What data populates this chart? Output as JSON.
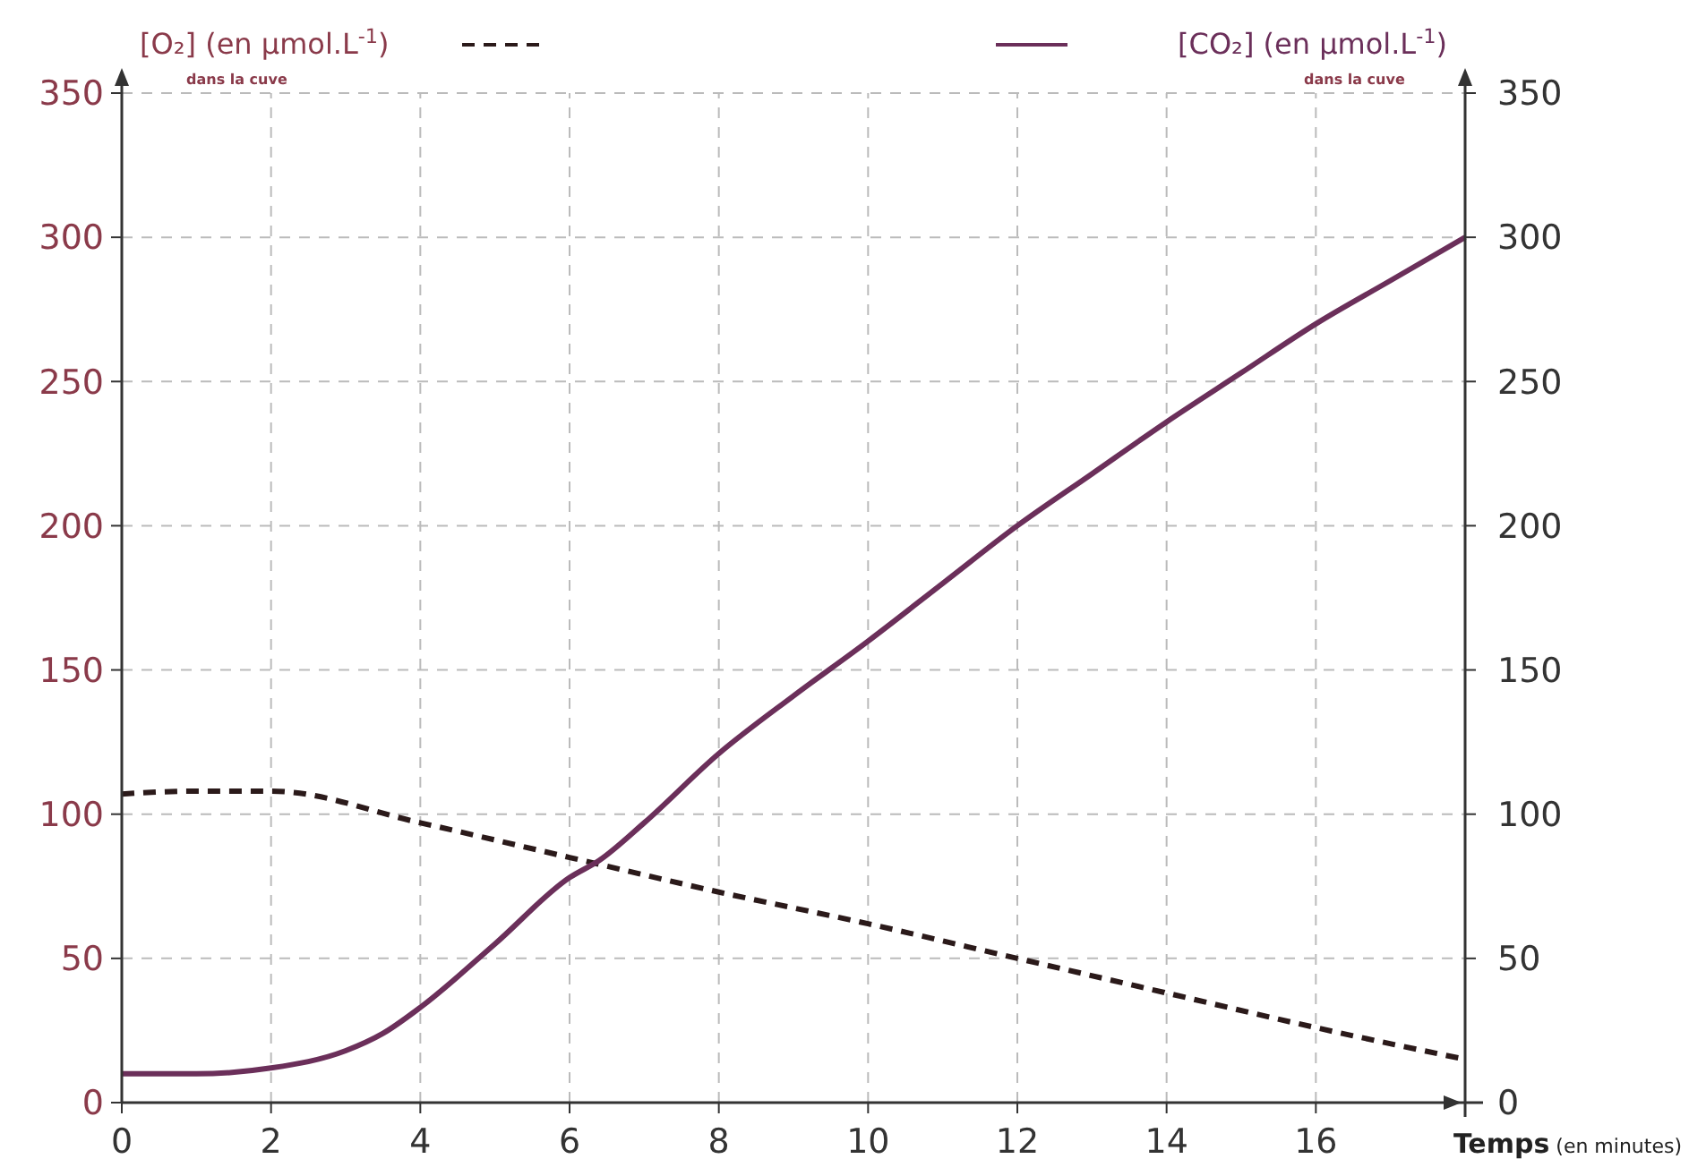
{
  "chart_data": {
    "type": "line",
    "xlabel": "Temps (en minutes)",
    "ylabel": "[O₂] (en µmol.L$^{-1}$)",
    "y2label": "[CO₂] (en µmol.L$^{-1}$)",
    "annotations": [
      "dans la cuve",
      "dans la cuve"
    ],
    "xlim": [
      0,
      18
    ],
    "xticks": [
      0,
      2,
      4,
      6,
      8,
      10,
      12,
      14,
      16
    ],
    "ylim": [
      0,
      350
    ],
    "yticks": [
      0,
      50,
      100,
      150,
      200,
      250,
      300,
      350
    ],
    "y2lim": [
      0,
      350
    ],
    "y2ticks": [
      0,
      50,
      100,
      150,
      200,
      250,
      300,
      350
    ],
    "grid": true,
    "series": [
      {
        "color": "#2b1a1a",
        "line_style": "dashed",
        "x": [
          0,
          1,
          2,
          4,
          6,
          8,
          10,
          12,
          14,
          16,
          18
        ],
        "values": [
          107,
          108,
          108,
          97,
          85,
          73,
          62,
          50,
          38,
          26,
          15
        ]
      },
      {
        "color": "#6b2f5a",
        "line_style": "solid",
        "axis": "y2",
        "x": [
          0,
          1,
          2,
          3,
          3.5,
          4,
          5,
          6,
          6.4,
          7,
          8,
          9,
          10,
          11,
          12,
          13,
          14,
          15,
          16,
          17,
          18
        ],
        "values": [
          10,
          10,
          12,
          18,
          24,
          33,
          55,
          78,
          84,
          97,
          121,
          141,
          160,
          180,
          200,
          218,
          236,
          253,
          270,
          285,
          300
        ]
      }
    ]
  }
}
